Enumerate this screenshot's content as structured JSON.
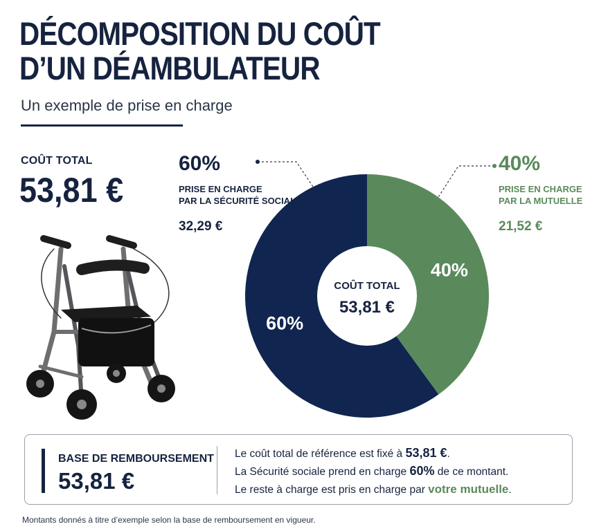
{
  "header": {
    "title_line1": "DÉCOMPOSITION DU COÛT",
    "title_line2": "D’UN DÉAMBULATEUR",
    "subtitle": "Un exemple de prise en charge"
  },
  "total": {
    "label": "COÛT TOTAL",
    "value": "53,81 €"
  },
  "callouts": {
    "left": {
      "percent": "60%",
      "label_line1": "PRISE EN CHARGE",
      "label_line2": "PAR LA SÉCURITÉ SOCIALE",
      "amount": "32,29 €"
    },
    "right": {
      "percent": "40%",
      "label_line1": "PRISE EN CHARGE",
      "label_line2": "PAR LA MUTUELLE",
      "amount": "21,52 €"
    }
  },
  "chart_data": {
    "type": "pie",
    "title": "",
    "categories": [
      "PRISE EN CHARGE PAR LA SÉCURITÉ SOCIALE",
      "PRISE EN CHARGE PAR LA MUTUELLE"
    ],
    "values": [
      60,
      40
    ],
    "amounts": [
      "32,29 €",
      "21,52 €"
    ],
    "slice_labels": [
      "60%",
      "40%"
    ],
    "center_label": "COÛT TOTAL",
    "center_value": "53,81 €",
    "colors": [
      "#102650",
      "#5a8a5b"
    ],
    "legend": "none"
  },
  "reimbursement": {
    "label": "BASE DE REMBOURSEMENT",
    "value": "53,81 €",
    "line1_text": "Le coût total de référence est fixé à ",
    "line1_strong": "53,81 €",
    "line1_end": ".",
    "line2_text": "La Sécurité sociale prend en charge ",
    "line2_strong": "60%",
    "line2_end": " de ce montant.",
    "line3_text": "Le reste à charge est pris en charge par ",
    "line3_strong": "votre mutuelle",
    "line3_end": "."
  },
  "footnote": "Montants donnés à titre d’exemple selon la base de remboursement en vigueur.",
  "colors": {
    "navy": "#16233f",
    "green": "#5a8a5b"
  }
}
